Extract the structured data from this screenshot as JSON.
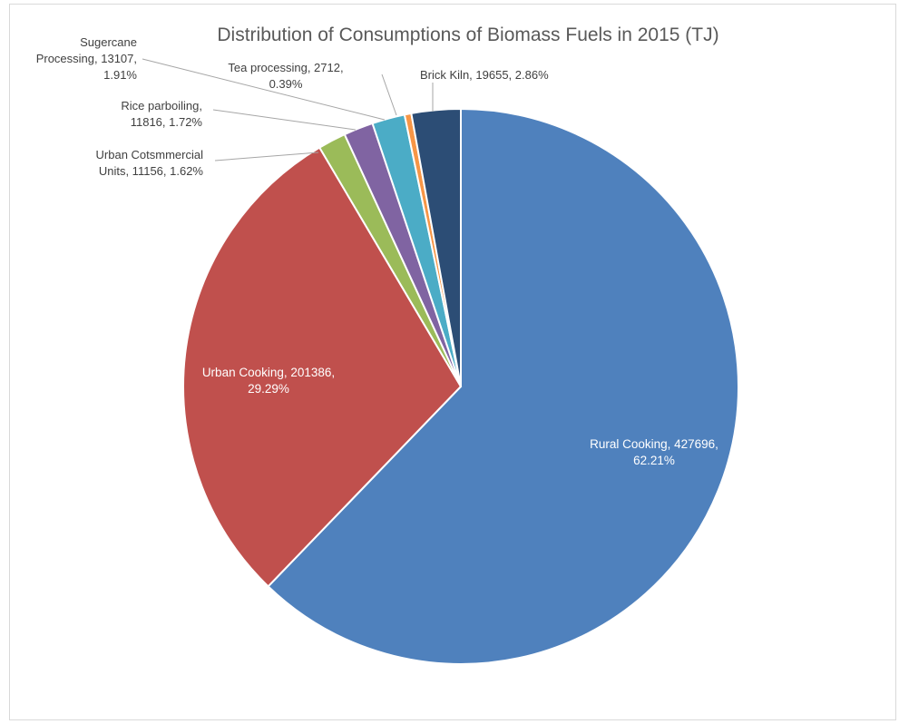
{
  "chart_data": {
    "type": "pie",
    "title": "Distribution of Consumptions of Biomass Fuels in 2015 (TJ)",
    "unit": "TJ",
    "slices": [
      {
        "name": "Rural Cooking",
        "value": 427696,
        "percent": "62.21%",
        "color": "#4f81bd",
        "label_lines": [
          "Rural Cooking, 427696,",
          "62.21%"
        ]
      },
      {
        "name": "Urban Cooking",
        "value": 201386,
        "percent": "29.29%",
        "color": "#c0504d",
        "label_lines": [
          "Urban Cooking, 201386,",
          "29.29%"
        ]
      },
      {
        "name": "Urban Cotsmmercial Units",
        "value": 11156,
        "percent": "1.62%",
        "color": "#9bbb59",
        "label_lines": [
          "Urban Cotsmmercial",
          "Units, 11156, 1.62%"
        ]
      },
      {
        "name": "Rice parboiling",
        "value": 11816,
        "percent": "1.72%",
        "color": "#8064a2",
        "label_lines": [
          "Rice parboiling,",
          "11816, 1.72%"
        ]
      },
      {
        "name": "Sugercane Processing",
        "value": 13107,
        "percent": "1.91%",
        "color": "#4bacc6",
        "label_lines": [
          "Sugercane",
          "Processing, 13107,",
          "1.91%"
        ]
      },
      {
        "name": "Tea processing",
        "value": 2712,
        "percent": "0.39%",
        "color": "#f79646",
        "label_lines": [
          "Tea processing, 2712,",
          "0.39%"
        ]
      },
      {
        "name": "Brick Kiln",
        "value": 19655,
        "percent": "2.86%",
        "color": "#2c4d75",
        "label_lines": [
          "Brick Kiln, 19655, 2.86%"
        ]
      }
    ]
  }
}
